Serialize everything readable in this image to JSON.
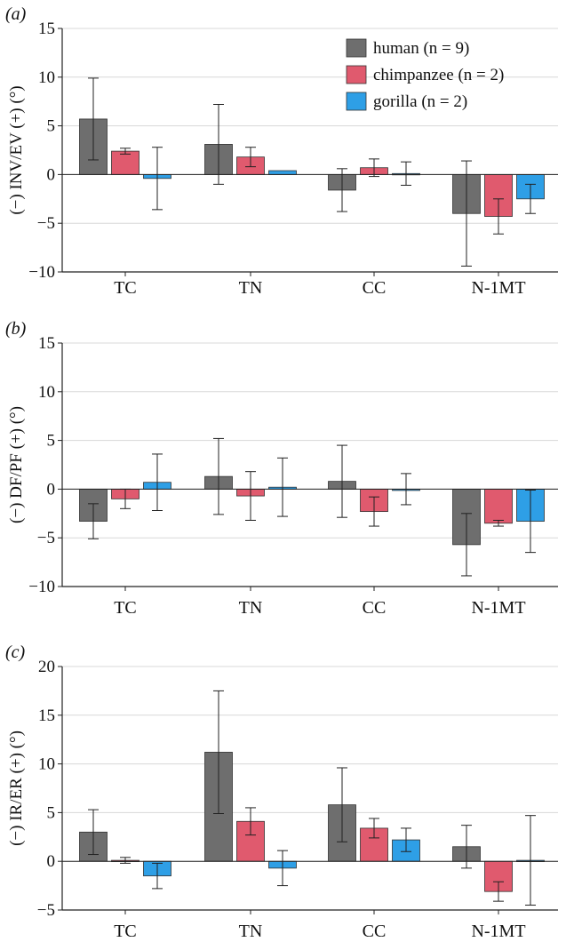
{
  "colors": {
    "human": "#6e6e6e",
    "chimpanzee": "#e05a6e",
    "gorilla": "#2e9fe6",
    "grid": "#d8d8d8",
    "axis": "#222222"
  },
  "legend": [
    {
      "key": "human",
      "label": "human",
      "n": "(n = 9)"
    },
    {
      "key": "chimpanzee",
      "label": "chimpanzee",
      "n": "(n = 2)"
    },
    {
      "key": "gorilla",
      "label": "gorilla",
      "n": "(n = 2)"
    }
  ],
  "chart_data": [
    {
      "panel": "(a)",
      "type": "bar",
      "ylabel": "(−) INV/EV (+) (°)",
      "ylim": [
        -10,
        15
      ],
      "yticks": [
        -10,
        -5,
        0,
        5,
        10,
        15
      ],
      "ytick_labels": [
        "−10",
        "−5",
        "0",
        "5",
        "10",
        "15"
      ],
      "categories": [
        "TC",
        "TN",
        "CC",
        "N-1MT"
      ],
      "legend_position": "top-right",
      "series": [
        {
          "name": "human",
          "values": [
            5.7,
            3.1,
            -1.6,
            -4.0
          ],
          "err": [
            4.2,
            4.1,
            2.2,
            5.4
          ]
        },
        {
          "name": "chimpanzee",
          "values": [
            2.4,
            1.8,
            0.7,
            -4.3
          ],
          "err": [
            0.3,
            1.0,
            0.9,
            1.8
          ]
        },
        {
          "name": "gorilla",
          "values": [
            -0.4,
            0.4,
            0.1,
            -2.5
          ],
          "err": [
            3.2,
            0,
            1.2,
            1.5
          ]
        }
      ]
    },
    {
      "panel": "(b)",
      "type": "bar",
      "ylabel": "(−) DF/PF (+) (°)",
      "ylim": [
        -10,
        15
      ],
      "yticks": [
        -10,
        -5,
        0,
        5,
        10,
        15
      ],
      "ytick_labels": [
        "−10",
        "−5",
        "0",
        "5",
        "10",
        "15"
      ],
      "categories": [
        "TC",
        "TN",
        "CC",
        "N-1MT"
      ],
      "series": [
        {
          "name": "human",
          "values": [
            -3.3,
            1.3,
            0.8,
            -5.7
          ],
          "err": [
            1.8,
            3.9,
            3.7,
            3.2
          ]
        },
        {
          "name": "chimpanzee",
          "values": [
            -1.0,
            -0.7,
            -2.3,
            -3.5
          ],
          "err": [
            1.0,
            2.5,
            1.5,
            0.3
          ]
        },
        {
          "name": "gorilla",
          "values": [
            0.7,
            0.2,
            0.0,
            -3.3
          ],
          "err": [
            2.9,
            3.0,
            1.6,
            3.2
          ]
        }
      ]
    },
    {
      "panel": "(c)",
      "type": "bar",
      "ylabel": "(−) IR/ER (+) (°)",
      "ylim": [
        -5,
        20
      ],
      "yticks": [
        -5,
        0,
        5,
        10,
        15,
        20
      ],
      "ytick_labels": [
        "−5",
        "0",
        "5",
        "10",
        "15",
        "20"
      ],
      "categories": [
        "TC",
        "TN",
        "CC",
        "N-1MT"
      ],
      "series": [
        {
          "name": "human",
          "values": [
            3.0,
            11.2,
            5.8,
            1.5
          ],
          "err": [
            2.3,
            6.3,
            3.8,
            2.2
          ]
        },
        {
          "name": "chimpanzee",
          "values": [
            0.1,
            4.1,
            3.4,
            -3.1
          ],
          "err": [
            0.3,
            1.4,
            1.0,
            1.0
          ]
        },
        {
          "name": "gorilla",
          "values": [
            -1.5,
            -0.7,
            2.2,
            0.1
          ],
          "err": [
            1.3,
            1.8,
            1.2,
            4.6
          ]
        }
      ]
    }
  ]
}
